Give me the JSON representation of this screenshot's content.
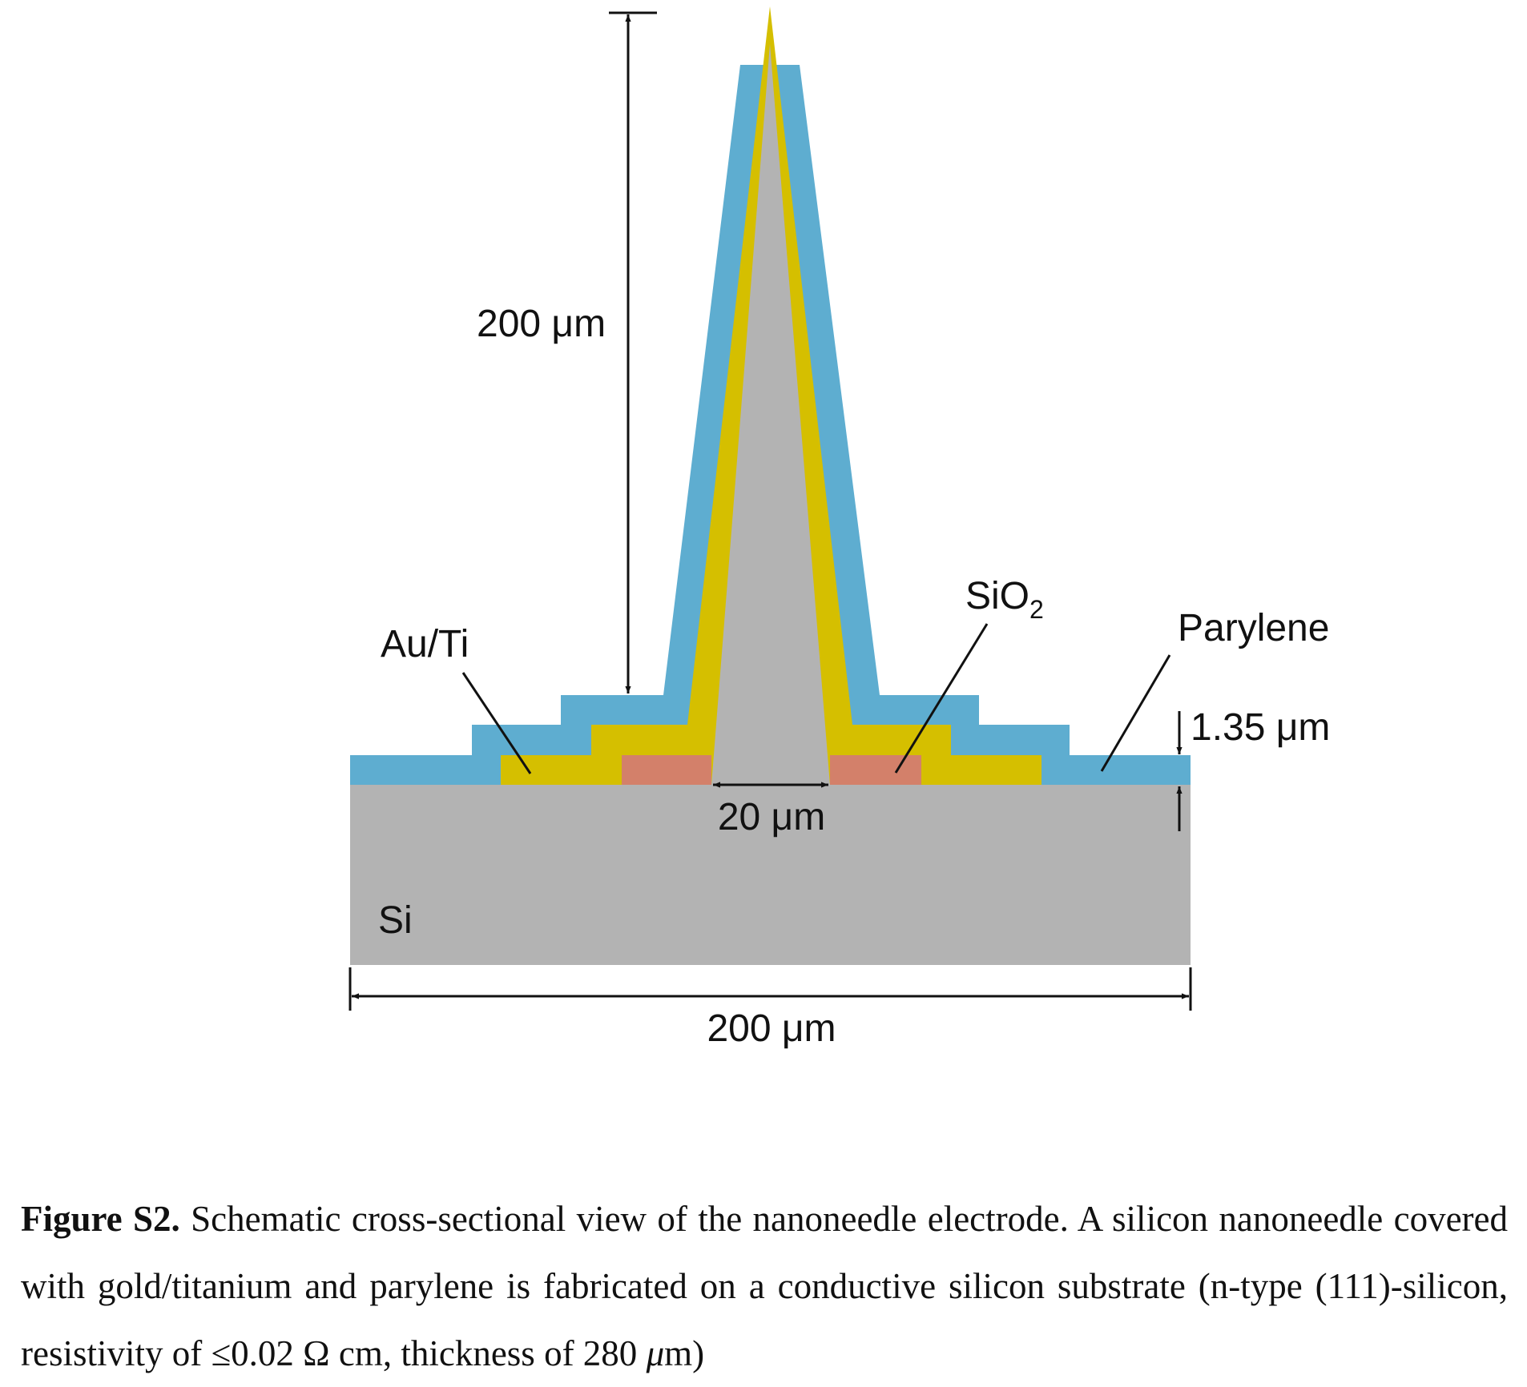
{
  "diagram": {
    "labels": {
      "needle_height": "200 μm",
      "au_ti": "Au/Ti",
      "sio2_main": "SiO",
      "sio2_sub": "2",
      "parylene": "Parylene",
      "parylene_thickness": "1.35 μm",
      "base_width": "20 μm",
      "si": "Si",
      "substrate_width": "200 μm"
    },
    "colors": {
      "silicon": "#b3b3b3",
      "gold": "#d5bf00",
      "parylene": "#5eadd0",
      "sio2": "#d3806a",
      "line": "#111111"
    }
  },
  "caption": {
    "label": "Figure S2.",
    "text_a": " Schematic cross-sectional view of the nanoneedle electrode. A silicon nanoneedle covered with gold/titanium and parylene is fabricated on a conductive silicon substrate (n-type (111)-silicon, resistivity of ≤0.02 Ω cm, thickness of 280 ",
    "unit_mu": "μ",
    "text_b": "m)"
  }
}
